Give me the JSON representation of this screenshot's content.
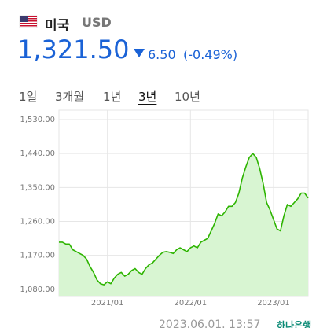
{
  "header": {
    "country": "미국",
    "currency": "USD",
    "price": "1,321.50",
    "change": "6.50",
    "change_pct": "(-0.49%)"
  },
  "tabs": {
    "items": [
      "1일",
      "3개월",
      "1년",
      "3년",
      "10년"
    ],
    "active": 3
  },
  "footer": {
    "timestamp": "2023.06.01. 13:57",
    "source": "하나은행"
  },
  "chart_data": {
    "type": "area",
    "categories": [
      null,
      null,
      null,
      null,
      null,
      null,
      null,
      null,
      null,
      null,
      null,
      null,
      null,
      null,
      "2021/01",
      null,
      null,
      null,
      null,
      null,
      null,
      null,
      null,
      null,
      null,
      null,
      null,
      null,
      null,
      null,
      null,
      null,
      null,
      null,
      null,
      null,
      null,
      null,
      "2022/01",
      null,
      null,
      null,
      null,
      null,
      null,
      null,
      null,
      null,
      null,
      null,
      null,
      null,
      null,
      null,
      null,
      null,
      null,
      null,
      null,
      null,
      null,
      null,
      "2023/01",
      null,
      null,
      null,
      null,
      null,
      null,
      null,
      null,
      null,
      null
    ],
    "series": [
      {
        "color": "#2db400",
        "fill": "#d8f5d2",
        "values": [
          1205,
          1205,
          1200,
          1200,
          1185,
          1180,
          1175,
          1170,
          1160,
          1140,
          1125,
          1105,
          1095,
          1092,
          1100,
          1095,
          1110,
          1120,
          1125,
          1115,
          1120,
          1130,
          1135,
          1125,
          1120,
          1135,
          1145,
          1150,
          1160,
          1170,
          1178,
          1180,
          1178,
          1175,
          1185,
          1190,
          1185,
          1180,
          1190,
          1195,
          1190,
          1205,
          1210,
          1215,
          1235,
          1255,
          1280,
          1275,
          1285,
          1300,
          1300,
          1310,
          1335,
          1375,
          1405,
          1430,
          1440,
          1430,
          1400,
          1360,
          1310,
          1290,
          1265,
          1240,
          1235,
          1275,
          1305,
          1300,
          1310,
          1320,
          1335,
          1335,
          1322
        ]
      }
    ],
    "ylim": [
      1063,
      1555
    ],
    "yticks": [
      {
        "value": 1080,
        "label": "1,080.00"
      },
      {
        "value": 1170,
        "label": "1,170.00"
      },
      {
        "value": 1260,
        "label": "1,260.00"
      },
      {
        "value": 1350,
        "label": "1,350.00"
      },
      {
        "value": 1440,
        "label": "1,440.00"
      },
      {
        "value": 1530,
        "label": "1,530.00"
      }
    ],
    "grid": true
  }
}
